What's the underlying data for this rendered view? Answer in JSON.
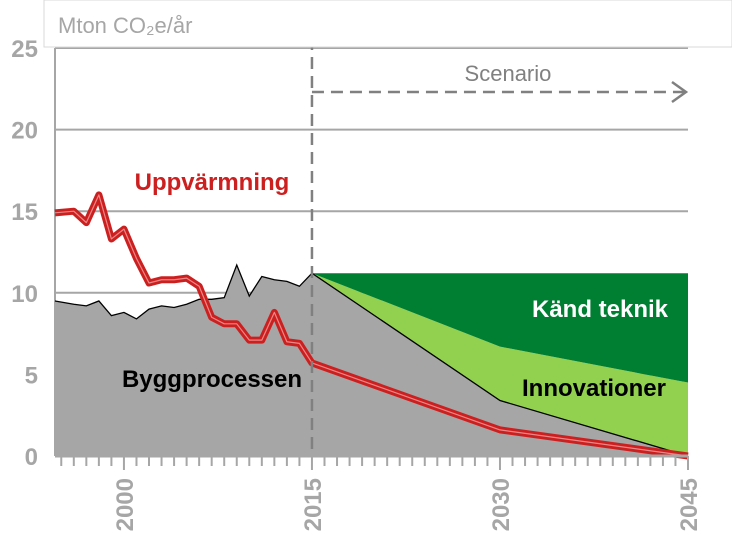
{
  "chart_data": {
    "type": "area",
    "ylabel": "Mton CO₂e/år",
    "ylim": [
      0,
      25
    ],
    "yticks": [
      0,
      5,
      10,
      15,
      20,
      25
    ],
    "xlim": [
      1994.5,
      2045
    ],
    "xticks": [
      2000,
      2015,
      2030,
      2045
    ],
    "xtick_labels": [
      "2000",
      "2015",
      "2030",
      "2045"
    ],
    "minor_ticks_every": 1,
    "grid": true,
    "scenario": {
      "label": "Scenario",
      "start": 2015,
      "end": 2045
    },
    "series": [
      {
        "name": "Byggprocessen",
        "kind": "area",
        "color": "#a6a6a6",
        "x": [
          1994.5,
          1996,
          1997,
          1998,
          1999,
          2000,
          2001,
          2002,
          2003,
          2004,
          2005,
          2006,
          2007,
          2008,
          2009,
          2010,
          2011,
          2012,
          2013,
          2014,
          2015,
          2030,
          2045
        ],
        "values": [
          9.5,
          9.3,
          9.2,
          9.5,
          8.6,
          8.8,
          8.4,
          9.0,
          9.2,
          9.1,
          9.3,
          9.6,
          9.6,
          9.7,
          11.7,
          9.8,
          11.0,
          10.8,
          10.7,
          10.4,
          11.2,
          3.4,
          0
        ]
      },
      {
        "name": "Innovationer",
        "kind": "area",
        "color": "#92d050",
        "x": [
          2015,
          2030,
          2045
        ],
        "lower": [
          11.2,
          3.4,
          0
        ],
        "upper": [
          11.2,
          6.7,
          4.5
        ]
      },
      {
        "name": "Känd teknik",
        "kind": "area",
        "color": "#007f33",
        "x": [
          2015,
          2030,
          2045
        ],
        "lower": [
          11.2,
          6.7,
          4.5
        ],
        "upper": [
          11.2,
          11.2,
          11.2
        ]
      },
      {
        "name": "Uppvärmning",
        "kind": "line",
        "color": "#cc2020",
        "x": [
          1994.5,
          1996,
          1997,
          1998,
          1999,
          2000,
          2001,
          2002,
          2003,
          2004,
          2005,
          2006,
          2007,
          2008,
          2009,
          2010,
          2011,
          2012,
          2013,
          2014,
          2015,
          2030,
          2045
        ],
        "values": [
          14.9,
          15.0,
          14.3,
          16.0,
          13.3,
          13.9,
          12.1,
          10.6,
          10.8,
          10.8,
          10.9,
          10.4,
          8.5,
          8.1,
          8.1,
          7.1,
          7.1,
          8.8,
          7.0,
          6.9,
          5.7,
          1.6,
          0
        ]
      }
    ],
    "colors": {
      "grid": "#a6a6a6",
      "axis_text": "#a6a6a6",
      "boundary_line": "#000000",
      "scenario_marker": "#808080"
    }
  }
}
